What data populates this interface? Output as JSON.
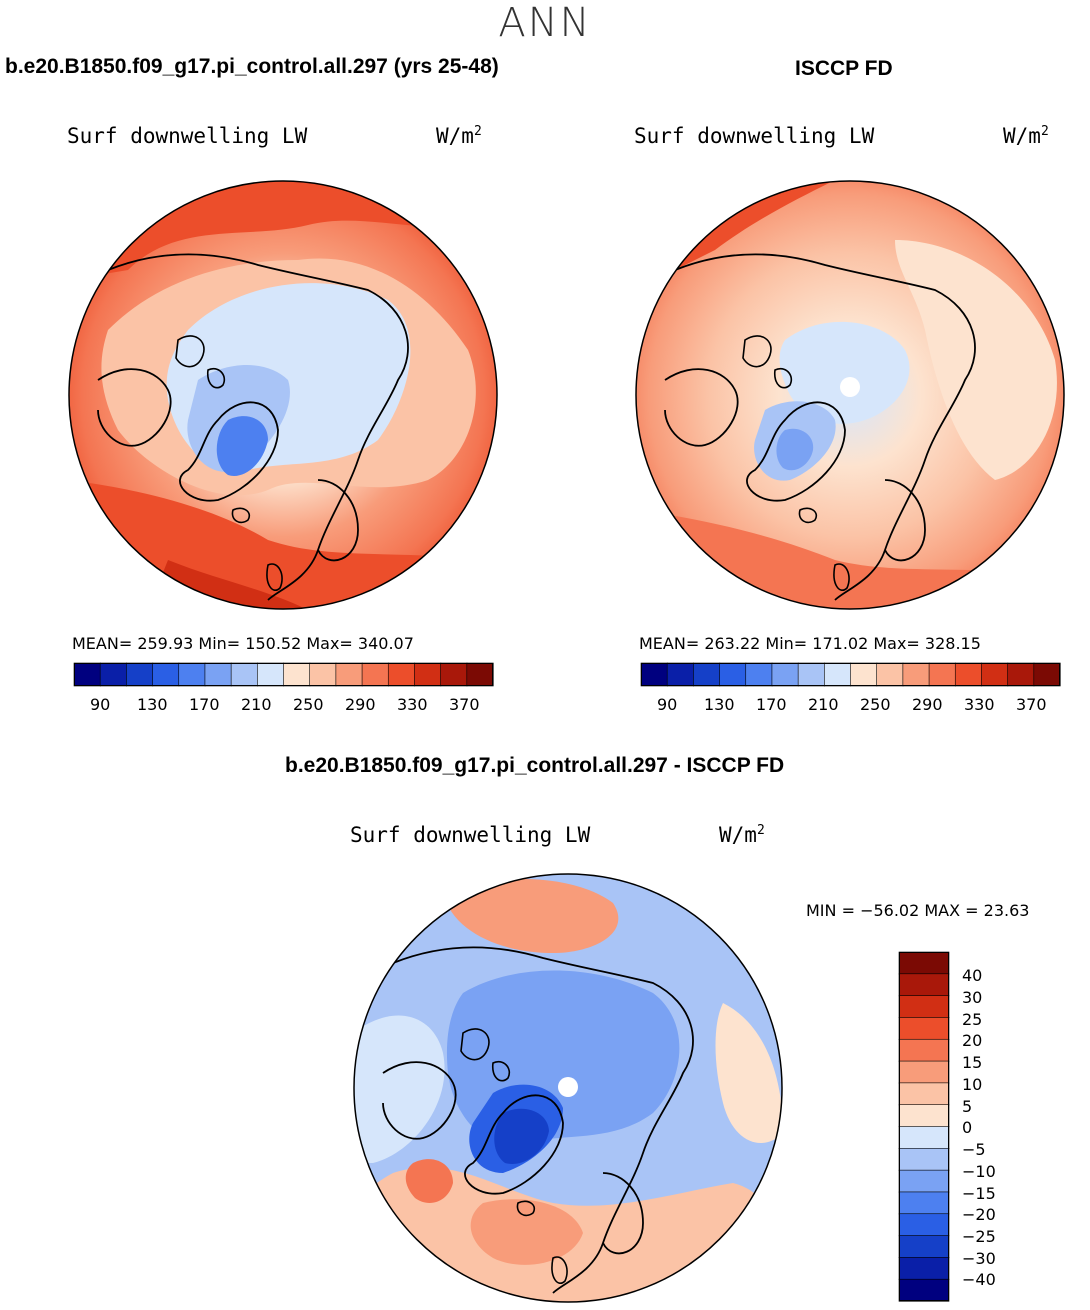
{
  "figure": {
    "season": "ANN",
    "diff_stats": "MIN = −56.02 MAX =  23.63"
  },
  "chart_data": [
    {
      "type": "heatmap",
      "title": "b.e20.B1850.f09_g17.pi_control.all.297 (yrs 25-48)",
      "variable": "Surf downwelling LW",
      "units_base": "W/m",
      "units_exp": "2",
      "stats_text": "MEAN= 259.93   Min= 150.52   Max= 340.07",
      "mean": 259.93,
      "min": 150.52,
      "max": 340.07,
      "colorbar": {
        "ticks": [
          "90",
          "130",
          "170",
          "210",
          "250",
          "290",
          "330",
          "370"
        ],
        "colors": [
          "#00007f",
          "#0a1fa8",
          "#1540c8",
          "#2a5fe5",
          "#4d80f0",
          "#7aa2f3",
          "#a9c4f6",
          "#d6e6fb",
          "#fde3cf",
          "#fbc3a6",
          "#f89c7a",
          "#f47552",
          "#ec4e2b",
          "#d12f14",
          "#a9180a",
          "#7b0a04"
        ]
      }
    },
    {
      "type": "heatmap",
      "title": "ISCCP FD",
      "variable": "Surf downwelling LW",
      "units_base": "W/m",
      "units_exp": "2",
      "stats_text": "MEAN= 263.22   Min= 171.02   Max= 328.15",
      "mean": 263.22,
      "min": 171.02,
      "max": 328.15,
      "colorbar": {
        "ticks": [
          "90",
          "130",
          "170",
          "210",
          "250",
          "290",
          "330",
          "370"
        ]
      }
    },
    {
      "type": "heatmap",
      "title": "b.e20.B1850.f09_g17.pi_control.all.297 - ISCCP FD",
      "variable": "Surf downwelling LW",
      "units_base": "W/m",
      "units_exp": "2",
      "min": -56.02,
      "max": 23.63,
      "colorbar": {
        "ticks": [
          "40",
          "30",
          "25",
          "20",
          "15",
          "10",
          "5",
          "0",
          "−5",
          "−10",
          "−15",
          "−20",
          "−25",
          "−30",
          "−40"
        ],
        "colors": [
          "#7b0a04",
          "#a9180a",
          "#d12f14",
          "#ec4e2b",
          "#f47552",
          "#f89c7a",
          "#fbc3a6",
          "#fde3cf",
          "#d6e6fb",
          "#a9c4f6",
          "#7aa2f3",
          "#4d80f0",
          "#2a5fe5",
          "#1540c8",
          "#0a1fa8",
          "#00007f"
        ]
      }
    }
  ]
}
